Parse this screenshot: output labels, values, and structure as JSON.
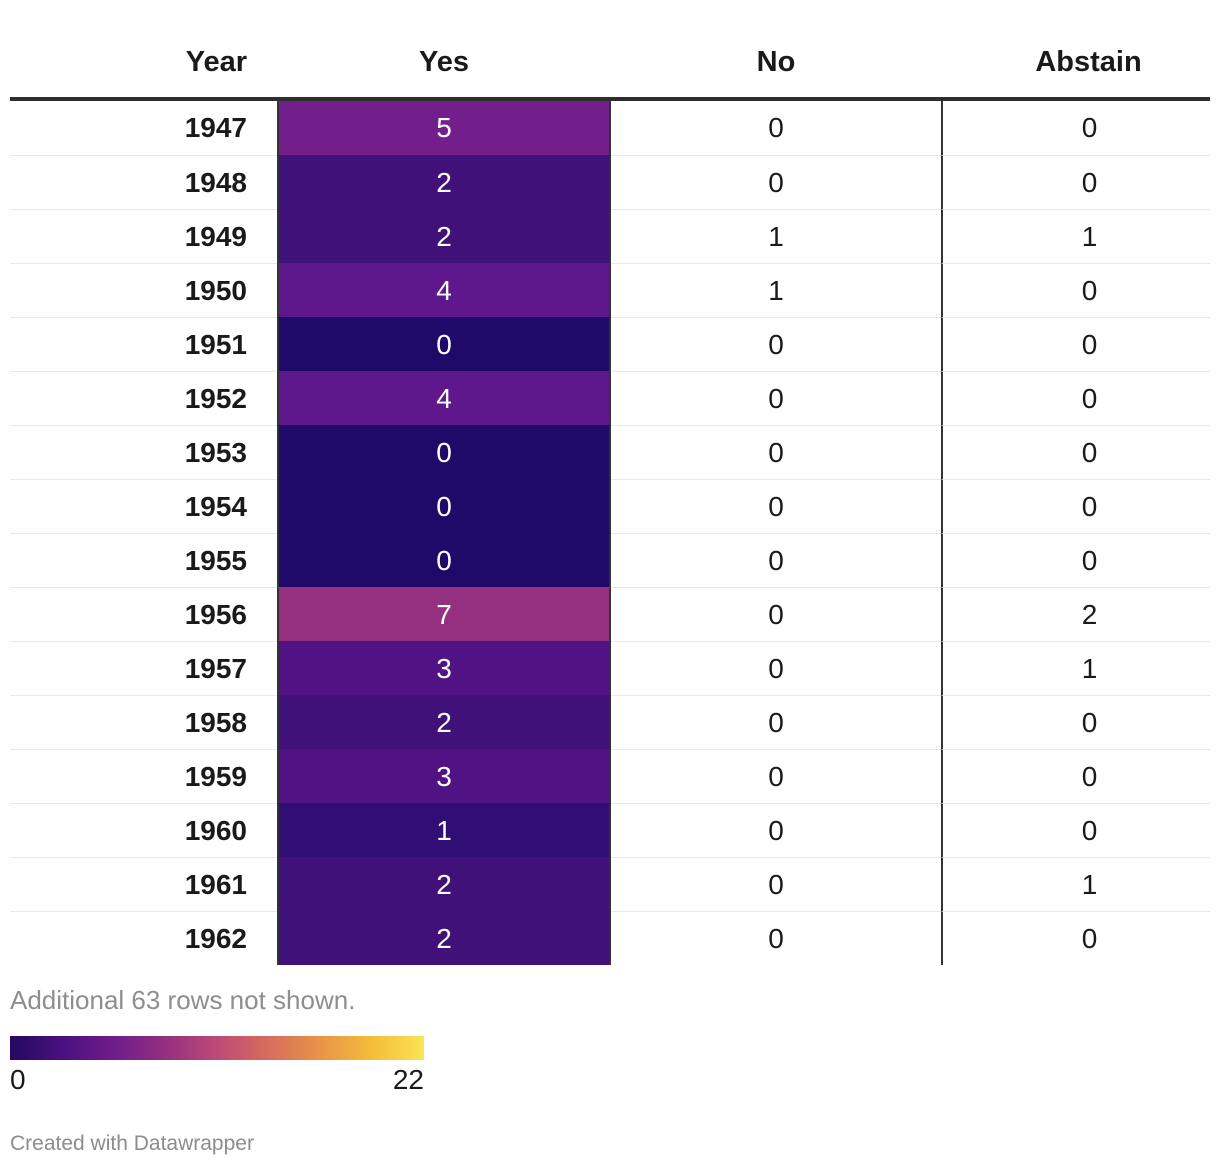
{
  "chart_data": {
    "type": "table",
    "columns": [
      "Year",
      "Yes",
      "No",
      "Abstain"
    ],
    "heatmap": {
      "applied_to_column": "Yes",
      "domain": [
        0,
        22
      ],
      "value_colors": {
        "0": "#1f0a6a",
        "1": "#310e73",
        "2": "#41117a",
        "3": "#511384",
        "4": "#5f178c",
        "5": "#721e8b",
        "7": "#94307f"
      }
    },
    "rows": [
      {
        "year": "1947",
        "yes": 5,
        "no": 0,
        "abstain": 0,
        "yes_color": "#721e8b"
      },
      {
        "year": "1948",
        "yes": 2,
        "no": 0,
        "abstain": 0,
        "yes_color": "#41117a"
      },
      {
        "year": "1949",
        "yes": 2,
        "no": 1,
        "abstain": 1,
        "yes_color": "#41117a"
      },
      {
        "year": "1950",
        "yes": 4,
        "no": 1,
        "abstain": 0,
        "yes_color": "#5f178c"
      },
      {
        "year": "1951",
        "yes": 0,
        "no": 0,
        "abstain": 0,
        "yes_color": "#1f0a6a"
      },
      {
        "year": "1952",
        "yes": 4,
        "no": 0,
        "abstain": 0,
        "yes_color": "#5f178c"
      },
      {
        "year": "1953",
        "yes": 0,
        "no": 0,
        "abstain": 0,
        "yes_color": "#1f0a6a"
      },
      {
        "year": "1954",
        "yes": 0,
        "no": 0,
        "abstain": 0,
        "yes_color": "#1f0a6a"
      },
      {
        "year": "1955",
        "yes": 0,
        "no": 0,
        "abstain": 0,
        "yes_color": "#1f0a6a"
      },
      {
        "year": "1956",
        "yes": 7,
        "no": 0,
        "abstain": 2,
        "yes_color": "#94307f"
      },
      {
        "year": "1957",
        "yes": 3,
        "no": 0,
        "abstain": 1,
        "yes_color": "#511384"
      },
      {
        "year": "1958",
        "yes": 2,
        "no": 0,
        "abstain": 0,
        "yes_color": "#41117a"
      },
      {
        "year": "1959",
        "yes": 3,
        "no": 0,
        "abstain": 0,
        "yes_color": "#511384"
      },
      {
        "year": "1960",
        "yes": 1,
        "no": 0,
        "abstain": 0,
        "yes_color": "#310e73"
      },
      {
        "year": "1961",
        "yes": 2,
        "no": 0,
        "abstain": 1,
        "yes_color": "#41117a"
      },
      {
        "year": "1962",
        "yes": 2,
        "no": 0,
        "abstain": 0,
        "yes_color": "#41117a"
      }
    ]
  },
  "legend": {
    "min": "0",
    "max": "22",
    "gradient_stops": [
      "#24095f",
      "#49107f",
      "#6e1d8a",
      "#952f80",
      "#bb4b76",
      "#d66d5c",
      "#e99449",
      "#f4bd3b",
      "#fbe356"
    ]
  },
  "footer": {
    "note": "Additional 63 rows not shown.",
    "attribution": "Created with Datawrapper"
  },
  "colors": {
    "header_rule": "#2d2d2d",
    "column_divider": "#333333",
    "row_separator": "#e9e9e9",
    "body_text": "#1a1a1a",
    "muted_text": "#8e8e8e",
    "heatmap_cell_text": "#ffffff"
  }
}
